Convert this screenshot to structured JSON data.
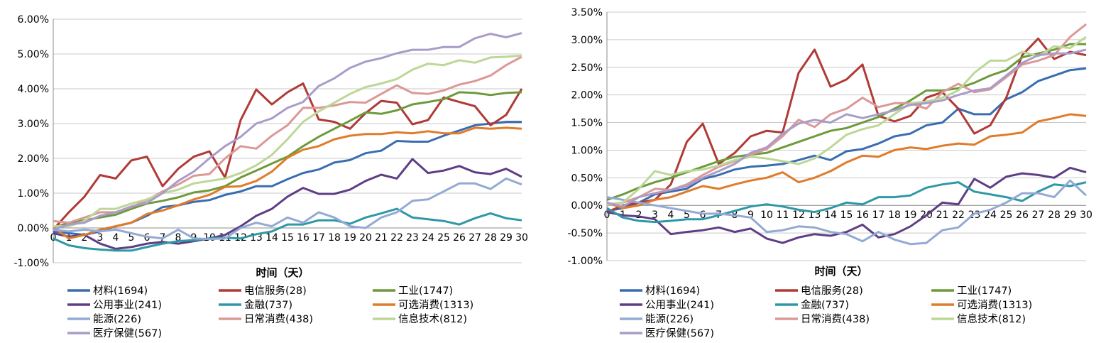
{
  "colors": {
    "材料": "#3a6db0",
    "电信服务": "#b03a36",
    "工业": "#6d9a3a",
    "公用事业": "#5e3e84",
    "金融": "#2e98a6",
    "可选消费": "#e07b2a",
    "能源": "#93aad4",
    "日常消费": "#dc9897",
    "信息技术": "#bcd797",
    "医疗保健": "#a99cc8"
  },
  "chart_data": [
    {
      "type": "line",
      "xlabel": "时间（天）",
      "ylabel": "",
      "x": [
        0,
        1,
        2,
        3,
        4,
        5,
        6,
        7,
        8,
        9,
        10,
        11,
        12,
        13,
        14,
        15,
        16,
        17,
        18,
        19,
        20,
        21,
        22,
        23,
        24,
        25,
        26,
        27,
        28,
        29,
        30
      ],
      "ylim": [
        -1.0,
        6.0
      ],
      "yticks": [
        "-1.00%",
        "0.00%",
        "1.00%",
        "2.00%",
        "3.00%",
        "4.00%",
        "5.00%",
        "6.00%"
      ],
      "grid": "horizontal",
      "legend": "bottom",
      "series": [
        {
          "name": "材料(1694)",
          "key": "材料",
          "values": [
            -0.1,
            -0.15,
            -0.2,
            -0.1,
            0.05,
            0.15,
            0.35,
            0.6,
            0.65,
            0.75,
            0.8,
            0.95,
            1.05,
            1.2,
            1.2,
            1.4,
            1.58,
            1.68,
            1.88,
            1.95,
            2.15,
            2.22,
            2.5,
            2.48,
            2.48,
            2.65,
            2.8,
            2.95,
            3.0,
            3.05,
            3.05
          ]
        },
        {
          "name": "电信服务(28)",
          "key": "电信服务",
          "values": [
            -0.05,
            0.45,
            0.9,
            1.52,
            1.42,
            1.94,
            2.05,
            1.2,
            1.7,
            2.05,
            2.2,
            1.45,
            3.1,
            3.98,
            3.55,
            3.9,
            4.15,
            3.12,
            3.05,
            2.85,
            3.3,
            3.65,
            3.6,
            2.98,
            3.1,
            3.75,
            3.62,
            3.5,
            2.95,
            3.25,
            4.0
          ]
        },
        {
          "name": "工业(1747)",
          "key": "工业",
          "values": [
            0.0,
            0.15,
            0.22,
            0.3,
            0.38,
            0.55,
            0.7,
            0.78,
            0.88,
            1.02,
            1.08,
            1.2,
            1.45,
            1.65,
            1.85,
            2.05,
            2.35,
            2.62,
            2.85,
            3.08,
            3.32,
            3.28,
            3.38,
            3.55,
            3.62,
            3.7,
            3.9,
            3.88,
            3.82,
            3.88,
            3.9
          ]
        },
        {
          "name": "公用事业(241)",
          "key": "公用事业",
          "values": [
            -0.15,
            -0.25,
            -0.2,
            -0.45,
            -0.6,
            -0.55,
            -0.45,
            -0.4,
            -0.45,
            -0.38,
            -0.3,
            -0.2,
            0.05,
            0.35,
            0.55,
            0.9,
            1.15,
            0.98,
            0.98,
            1.1,
            1.35,
            1.53,
            1.42,
            1.98,
            1.58,
            1.65,
            1.78,
            1.6,
            1.55,
            1.7,
            1.47
          ]
        },
        {
          "name": "金融(737)",
          "key": "金融",
          "values": [
            -0.3,
            -0.5,
            -0.58,
            -0.62,
            -0.65,
            -0.65,
            -0.55,
            -0.45,
            -0.38,
            -0.35,
            -0.3,
            -0.28,
            -0.3,
            -0.18,
            -0.1,
            0.1,
            0.1,
            0.22,
            0.22,
            0.12,
            0.3,
            0.42,
            0.55,
            0.3,
            0.25,
            0.2,
            0.1,
            0.28,
            0.42,
            0.28,
            0.22
          ]
        },
        {
          "name": "可选消费(1313)",
          "key": "可选消费",
          "values": [
            0.02,
            -0.3,
            -0.2,
            -0.05,
            0.05,
            0.15,
            0.4,
            0.5,
            0.65,
            0.82,
            0.95,
            1.18,
            1.2,
            1.35,
            1.62,
            2.02,
            2.25,
            2.35,
            2.55,
            2.65,
            2.7,
            2.7,
            2.75,
            2.72,
            2.78,
            2.72,
            2.72,
            2.88,
            2.85,
            2.88,
            2.85
          ]
        },
        {
          "name": "能源(226)",
          "key": "能源",
          "values": [
            -0.05,
            -0.1,
            -0.05,
            -0.1,
            -0.05,
            -0.15,
            -0.25,
            -0.3,
            -0.05,
            -0.3,
            -0.32,
            -0.3,
            0.0,
            0.15,
            0.05,
            0.3,
            0.15,
            0.45,
            0.3,
            0.05,
            0.0,
            0.3,
            0.45,
            0.78,
            0.82,
            1.05,
            1.28,
            1.28,
            1.12,
            1.42,
            1.25
          ]
        },
        {
          "name": "日常消费(438)",
          "key": "日常消费",
          "values": [
            0.2,
            0.15,
            0.3,
            0.45,
            0.45,
            0.6,
            0.8,
            1.05,
            1.25,
            1.5,
            1.55,
            2.0,
            2.35,
            2.28,
            2.65,
            2.95,
            3.45,
            3.45,
            3.52,
            3.62,
            3.6,
            3.85,
            4.1,
            3.88,
            3.85,
            3.95,
            4.12,
            4.22,
            4.38,
            4.68,
            4.92
          ]
        },
        {
          "name": "信息技术(812)",
          "key": "信息技术",
          "values": [
            0.05,
            0.05,
            0.2,
            0.55,
            0.55,
            0.7,
            0.82,
            1.0,
            1.1,
            1.28,
            1.35,
            1.42,
            1.58,
            1.8,
            2.1,
            2.55,
            3.05,
            3.35,
            3.6,
            3.85,
            4.05,
            4.15,
            4.28,
            4.55,
            4.72,
            4.68,
            4.82,
            4.75,
            4.9,
            4.92,
            4.95
          ]
        },
        {
          "name": "医疗保健(567)",
          "key": "医疗保健",
          "values": [
            -0.05,
            0.1,
            0.15,
            0.35,
            0.45,
            0.62,
            0.72,
            1.0,
            1.35,
            1.62,
            2.0,
            2.35,
            2.62,
            3.0,
            3.15,
            3.45,
            3.62,
            4.08,
            4.3,
            4.6,
            4.78,
            4.88,
            5.02,
            5.12,
            5.12,
            5.2,
            5.2,
            5.45,
            5.58,
            5.48,
            5.6
          ]
        }
      ]
    },
    {
      "type": "line",
      "xlabel": "时间（天）",
      "ylabel": "",
      "x": [
        0,
        1,
        2,
        3,
        4,
        5,
        6,
        7,
        8,
        9,
        10,
        11,
        12,
        13,
        14,
        15,
        16,
        17,
        18,
        19,
        20,
        21,
        22,
        23,
        24,
        25,
        26,
        27,
        28,
        29,
        30
      ],
      "ylim": [
        -1.0,
        3.5
      ],
      "yticks": [
        "-1.00%",
        "-0.50%",
        "0.00%",
        "0.50%",
        "1.00%",
        "1.50%",
        "2.00%",
        "2.50%",
        "3.00%",
        "3.50%"
      ],
      "grid": "horizontal",
      "legend": "bottom",
      "series": [
        {
          "name": "材料(1694)",
          "key": "材料",
          "values": [
            -0.1,
            -0.05,
            0.05,
            0.2,
            0.25,
            0.3,
            0.48,
            0.55,
            0.65,
            0.7,
            0.72,
            0.75,
            0.82,
            0.9,
            0.82,
            0.98,
            1.02,
            1.12,
            1.25,
            1.3,
            1.45,
            1.5,
            1.75,
            1.65,
            1.65,
            1.92,
            2.05,
            2.25,
            2.35,
            2.45,
            2.48
          ]
        },
        {
          "name": "电信服务(28)",
          "key": "电信服务",
          "values": [
            -0.12,
            0.0,
            0.05,
            0.1,
            0.38,
            1.15,
            1.48,
            0.75,
            0.95,
            1.25,
            1.35,
            1.32,
            2.4,
            2.82,
            2.15,
            2.28,
            2.55,
            1.62,
            1.52,
            1.62,
            1.95,
            2.05,
            1.75,
            1.3,
            1.45,
            1.95,
            2.72,
            3.02,
            2.65,
            2.78,
            2.72
          ]
        },
        {
          "name": "工业(1747)",
          "key": "工业",
          "values": [
            0.1,
            0.2,
            0.32,
            0.42,
            0.5,
            0.6,
            0.7,
            0.8,
            0.88,
            0.92,
            0.95,
            1.05,
            1.15,
            1.25,
            1.35,
            1.4,
            1.5,
            1.6,
            1.75,
            1.9,
            2.08,
            2.08,
            2.12,
            2.22,
            2.35,
            2.45,
            2.68,
            2.75,
            2.82,
            2.92,
            2.92
          ]
        },
        {
          "name": "公用事业(241)",
          "key": "公用事业",
          "values": [
            -0.12,
            -0.18,
            -0.2,
            -0.25,
            -0.52,
            -0.48,
            -0.45,
            -0.4,
            -0.48,
            -0.42,
            -0.6,
            -0.68,
            -0.58,
            -0.52,
            -0.55,
            -0.48,
            -0.35,
            -0.58,
            -0.52,
            -0.38,
            -0.18,
            0.05,
            0.02,
            0.48,
            0.32,
            0.52,
            0.58,
            0.55,
            0.5,
            0.68,
            0.6
          ]
        },
        {
          "name": "金融(737)",
          "key": "金融",
          "values": [
            -0.05,
            -0.22,
            -0.28,
            -0.3,
            -0.28,
            -0.25,
            -0.25,
            -0.18,
            -0.1,
            -0.02,
            0.02,
            -0.02,
            -0.08,
            -0.12,
            -0.05,
            0.05,
            0.02,
            0.15,
            0.15,
            0.18,
            0.32,
            0.38,
            0.42,
            0.25,
            0.2,
            0.15,
            0.08,
            0.25,
            0.38,
            0.35,
            0.42
          ]
        },
        {
          "name": "可选消费(1313)",
          "key": "可选消费",
          "values": [
            0.05,
            -0.05,
            0.0,
            0.1,
            0.15,
            0.25,
            0.35,
            0.3,
            0.38,
            0.45,
            0.5,
            0.6,
            0.42,
            0.5,
            0.62,
            0.78,
            0.9,
            0.88,
            1.0,
            1.05,
            1.02,
            1.08,
            1.12,
            1.1,
            1.25,
            1.28,
            1.32,
            1.52,
            1.58,
            1.65,
            1.62
          ]
        },
        {
          "name": "能源(226)",
          "key": "能源",
          "values": [
            0.15,
            0.1,
            0.05,
            0.0,
            -0.05,
            -0.1,
            -0.15,
            -0.15,
            -0.18,
            -0.22,
            -0.48,
            -0.45,
            -0.38,
            -0.4,
            -0.48,
            -0.52,
            -0.65,
            -0.48,
            -0.62,
            -0.7,
            -0.68,
            -0.45,
            -0.4,
            -0.15,
            -0.08,
            0.05,
            0.22,
            0.22,
            0.15,
            0.45,
            0.18
          ]
        },
        {
          "name": "日常消费(438)",
          "key": "日常消费",
          "values": [
            0.0,
            0.05,
            0.15,
            0.3,
            0.28,
            0.38,
            0.55,
            0.7,
            0.8,
            0.92,
            1.02,
            1.25,
            1.55,
            1.42,
            1.65,
            1.75,
            1.95,
            1.78,
            1.85,
            1.85,
            1.75,
            2.05,
            2.2,
            2.05,
            2.1,
            2.32,
            2.55,
            2.62,
            2.72,
            3.05,
            3.28
          ]
        },
        {
          "name": "信息技术(812)",
          "key": "信息技术",
          "values": [
            0.02,
            0.05,
            0.3,
            0.62,
            0.55,
            0.62,
            0.65,
            0.72,
            0.82,
            0.88,
            0.85,
            0.8,
            0.75,
            0.85,
            1.05,
            1.28,
            1.38,
            1.45,
            1.65,
            1.85,
            1.88,
            1.95,
            2.08,
            2.4,
            2.62,
            2.62,
            2.78,
            2.7,
            2.88,
            2.85,
            3.05
          ]
        },
        {
          "name": "医疗保健(567)",
          "key": "医疗保健",
          "values": [
            0.05,
            -0.02,
            0.15,
            0.22,
            0.28,
            0.35,
            0.5,
            0.62,
            0.75,
            0.95,
            1.05,
            1.3,
            1.48,
            1.55,
            1.5,
            1.65,
            1.58,
            1.65,
            1.72,
            1.82,
            1.85,
            1.9,
            2.0,
            2.08,
            2.12,
            2.35,
            2.58,
            2.72,
            2.75,
            2.75,
            2.82
          ]
        }
      ]
    }
  ]
}
